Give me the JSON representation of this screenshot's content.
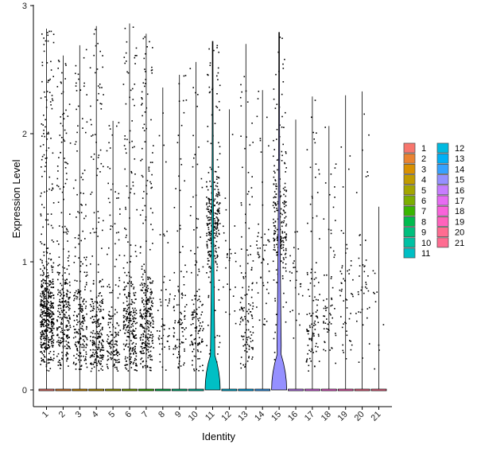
{
  "chart_data": {
    "type": "violin",
    "xlabel": "Identity",
    "ylabel": "Expression Level",
    "ylim": [
      0,
      3
    ],
    "yticks": [
      0,
      1,
      2,
      3
    ],
    "grid": false,
    "legend_position": "right",
    "legend_columns": 2,
    "categories": [
      "1",
      "2",
      "3",
      "4",
      "5",
      "6",
      "7",
      "8",
      "9",
      "10",
      "11",
      "12",
      "13",
      "14",
      "15",
      "16",
      "17",
      "18",
      "19",
      "20",
      "21"
    ],
    "colors": [
      "#F8766D",
      "#EA8331",
      "#D89000",
      "#C09B00",
      "#A3A500",
      "#7CAE00",
      "#39B600",
      "#00BB4E",
      "#00BF7D",
      "#00C1A3",
      "#00BFC4",
      "#00BAE0",
      "#00B0F6",
      "#35A2FF",
      "#9590FF",
      "#C77CFF",
      "#E76BF3",
      "#FA62DB",
      "#FF62BC",
      "#FF6C91",
      "#FF6C91"
    ],
    "max_values": [
      2.82,
      2.61,
      2.69,
      2.84,
      2.1,
      2.86,
      2.78,
      2.36,
      2.46,
      2.56,
      2.72,
      2.19,
      2.7,
      2.34,
      2.79,
      2.11,
      2.29,
      2.06,
      2.3,
      2.33,
      1.43
    ],
    "dot_density": [
      1.0,
      0.55,
      0.45,
      0.5,
      0.3,
      0.55,
      0.6,
      0.1,
      0.2,
      0.25,
      0.55,
      0.05,
      0.25,
      0.1,
      0.45,
      0.05,
      0.2,
      0.12,
      0.1,
      0.08,
      0.02
    ],
    "dot_center": [
      0.6,
      0.6,
      0.5,
      0.4,
      0.3,
      0.5,
      0.5,
      0.5,
      0.5,
      0.5,
      1.3,
      1.0,
      0.5,
      1.0,
      1.3,
      0.8,
      0.5,
      0.6,
      0.7,
      0.8,
      0.3
    ],
    "violin_widths": [
      0.15,
      0.13,
      0.13,
      0.13,
      0.13,
      0.13,
      0.13,
      0.13,
      0.13,
      0.13,
      0.9,
      0.13,
      0.13,
      0.13,
      0.9,
      0.13,
      0.13,
      0.13,
      0.13,
      0.13,
      0.13
    ],
    "violin_hump_height": [
      0,
      0,
      0,
      0,
      0,
      0,
      0,
      0,
      0,
      0,
      0.28,
      0,
      0,
      0,
      0.28,
      0,
      0,
      0,
      0,
      0,
      0
    ]
  }
}
